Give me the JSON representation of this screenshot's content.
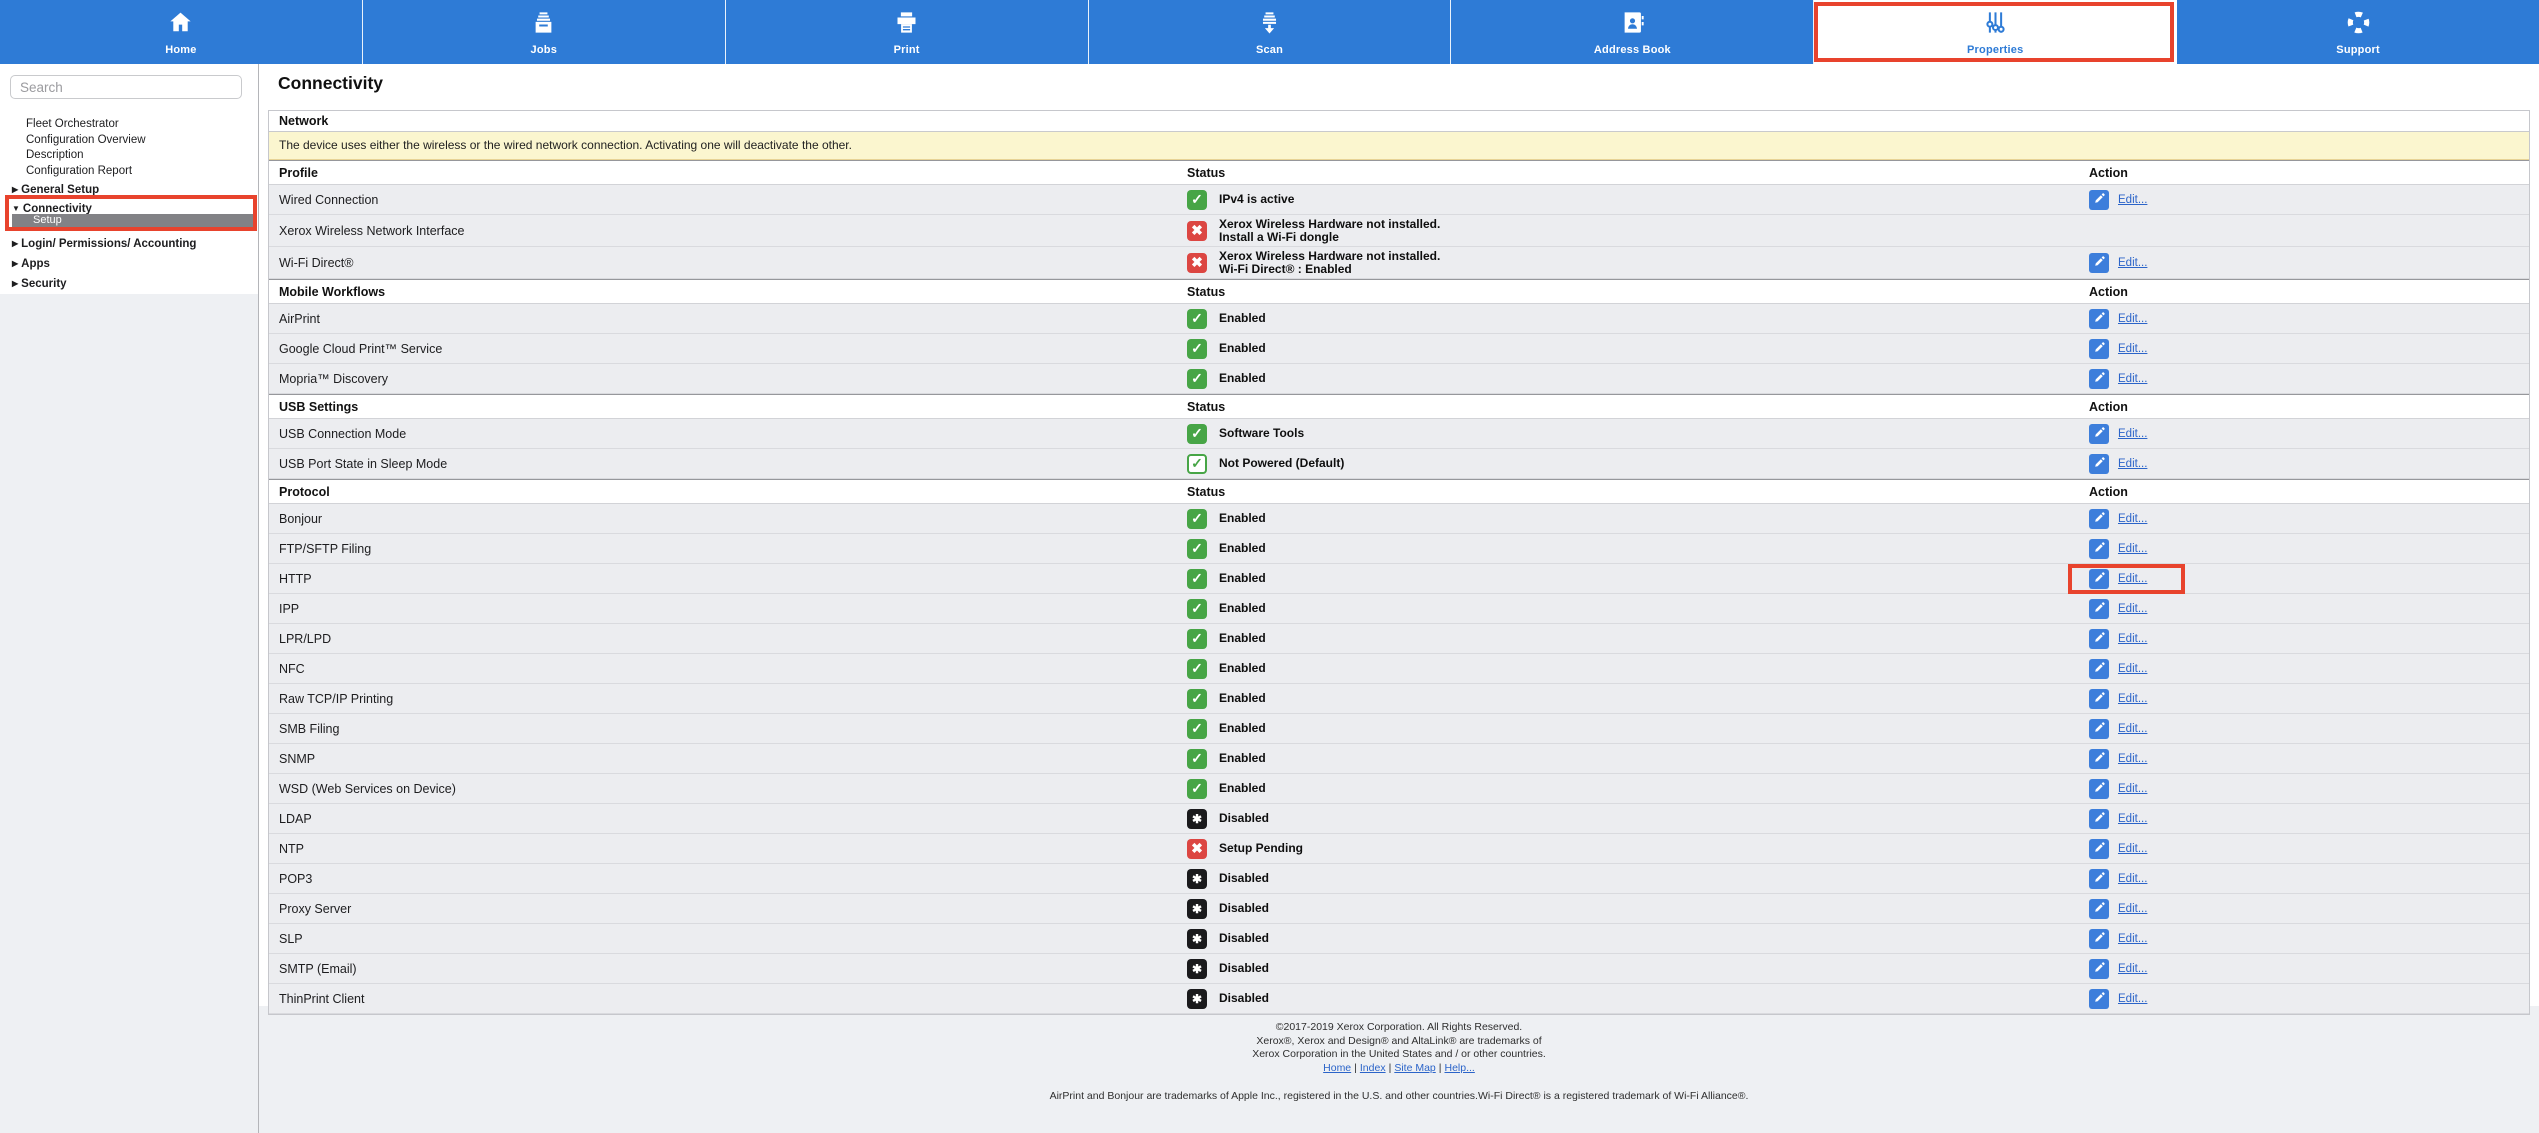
{
  "nav": {
    "tabs": [
      {
        "label": "Home",
        "icon": "home-icon",
        "active": false
      },
      {
        "label": "Jobs",
        "icon": "jobs-icon",
        "active": false
      },
      {
        "label": "Print",
        "icon": "print-icon",
        "active": false
      },
      {
        "label": "Scan",
        "icon": "scan-icon",
        "active": false
      },
      {
        "label": "Address Book",
        "icon": "address-book-icon",
        "active": false
      },
      {
        "label": "Properties",
        "icon": "properties-icon",
        "active": true,
        "annotated": true
      },
      {
        "label": "Support",
        "icon": "support-icon",
        "active": false
      }
    ]
  },
  "sidebar": {
    "search_placeholder": "Search",
    "items": [
      {
        "label": "Fleet Orchestrator",
        "type": "link"
      },
      {
        "label": "Configuration Overview",
        "type": "link"
      },
      {
        "label": "Description",
        "type": "link"
      },
      {
        "label": "Configuration Report",
        "type": "link"
      },
      {
        "label": "General Setup",
        "type": "group",
        "state": "collapsed"
      },
      {
        "label": "Connectivity",
        "type": "group",
        "state": "expanded",
        "annotated": true
      },
      {
        "label": "Setup",
        "type": "child",
        "selected": true
      },
      {
        "label": "Login/ Permissions/ Accounting",
        "type": "group",
        "state": "collapsed"
      },
      {
        "label": "Apps",
        "type": "group",
        "state": "collapsed"
      },
      {
        "label": "Security",
        "type": "group",
        "state": "collapsed"
      }
    ]
  },
  "page": {
    "title": "Connectivity"
  },
  "table": {
    "network_header": "Network",
    "notice": "The device uses either the wireless or the wired network connection. Activating one will deactivate the other.",
    "columns": {
      "status": "Status",
      "action": "Action"
    },
    "edit_label": "Edit...",
    "sections": [
      {
        "header": "Profile",
        "rows": [
          {
            "label": "Wired Connection",
            "status_icon": "green-check",
            "status_lines": [
              "IPv4 is active"
            ],
            "edit": true
          },
          {
            "label": "Xerox Wireless Network Interface",
            "status_icon": "red-x",
            "status_lines": [
              "Xerox Wireless Hardware not installed.",
              "Install a Wi-Fi dongle"
            ],
            "edit": false
          },
          {
            "label": "Wi-Fi Direct®",
            "status_icon": "red-x",
            "status_lines": [
              "Xerox Wireless Hardware not installed.",
              "Wi-Fi Direct® : Enabled"
            ],
            "edit": true
          }
        ]
      },
      {
        "header": "Mobile Workflows",
        "rows": [
          {
            "label": "AirPrint",
            "status_icon": "green-check",
            "status_lines": [
              "Enabled"
            ],
            "edit": true
          },
          {
            "label": "Google Cloud Print™ Service",
            "status_icon": "green-check",
            "status_lines": [
              "Enabled"
            ],
            "edit": true
          },
          {
            "label": "Mopria™ Discovery",
            "status_icon": "green-check",
            "status_lines": [
              "Enabled"
            ],
            "edit": true
          }
        ]
      },
      {
        "header": "USB Settings",
        "rows": [
          {
            "label": "USB Connection Mode",
            "status_icon": "green-check",
            "status_lines": [
              "Software Tools"
            ],
            "edit": true
          },
          {
            "label": "USB Port State in Sleep Mode",
            "status_icon": "green-check-outline",
            "status_lines": [
              "Not Powered (Default)"
            ],
            "edit": true
          }
        ]
      },
      {
        "header": "Protocol",
        "rows": [
          {
            "label": "Bonjour",
            "status_icon": "green-check",
            "status_lines": [
              "Enabled"
            ],
            "edit": true
          },
          {
            "label": "FTP/SFTP Filing",
            "status_icon": "green-check",
            "status_lines": [
              "Enabled"
            ],
            "edit": true
          },
          {
            "label": "HTTP",
            "status_icon": "green-check",
            "status_lines": [
              "Enabled"
            ],
            "edit": true,
            "annotated": true
          },
          {
            "label": "IPP",
            "status_icon": "green-check",
            "status_lines": [
              "Enabled"
            ],
            "edit": true
          },
          {
            "label": "LPR/LPD",
            "status_icon": "green-check",
            "status_lines": [
              "Enabled"
            ],
            "edit": true
          },
          {
            "label": "NFC",
            "status_icon": "green-check",
            "status_lines": [
              "Enabled"
            ],
            "edit": true
          },
          {
            "label": "Raw TCP/IP Printing",
            "status_icon": "green-check",
            "status_lines": [
              "Enabled"
            ],
            "edit": true
          },
          {
            "label": "SMB Filing",
            "status_icon": "green-check",
            "status_lines": [
              "Enabled"
            ],
            "edit": true
          },
          {
            "label": "SNMP",
            "status_icon": "green-check",
            "status_lines": [
              "Enabled"
            ],
            "edit": true
          },
          {
            "label": "WSD (Web Services on Device)",
            "status_icon": "green-check",
            "status_lines": [
              "Enabled"
            ],
            "edit": true
          },
          {
            "label": "LDAP",
            "status_icon": "black-asterisk",
            "status_lines": [
              "Disabled"
            ],
            "edit": true
          },
          {
            "label": "NTP",
            "status_icon": "red-x",
            "status_lines": [
              "Setup Pending"
            ],
            "edit": true
          },
          {
            "label": "POP3",
            "status_icon": "black-asterisk",
            "status_lines": [
              "Disabled"
            ],
            "edit": true
          },
          {
            "label": "Proxy Server",
            "status_icon": "black-asterisk",
            "status_lines": [
              "Disabled"
            ],
            "edit": true
          },
          {
            "label": "SLP",
            "status_icon": "black-asterisk",
            "status_lines": [
              "Disabled"
            ],
            "edit": true
          },
          {
            "label": "SMTP (Email)",
            "status_icon": "black-asterisk",
            "status_lines": [
              "Disabled"
            ],
            "edit": true
          },
          {
            "label": "ThinPrint Client",
            "status_icon": "black-asterisk",
            "status_lines": [
              "Disabled"
            ],
            "edit": true
          }
        ]
      }
    ]
  },
  "footer": {
    "copyright_lines": [
      "©2017-2019  Xerox Corporation. All Rights Reserved.",
      "Xerox®, Xerox and Design® and AltaLink® are trademarks of",
      "Xerox Corporation in the United States and / or other countries."
    ],
    "links": [
      "Home",
      "Index",
      "Site Map",
      "Help..."
    ],
    "separator": "|",
    "trademark_line": "AirPrint and Bonjour are trademarks of Apple Inc., registered in the U.S. and other countries.Wi-Fi Direct® is a registered trademark of Wi-Fi Alliance®."
  },
  "colors": {
    "nav_blue": "#2e7bd6",
    "annotation_red": "#e8432d",
    "status_green": "#47a546",
    "status_red": "#dc4642",
    "status_black": "#1a1a1c",
    "edit_blue": "#3d7edb",
    "link_blue": "#2b64c9",
    "notice_bg": "#fbf6cf"
  }
}
